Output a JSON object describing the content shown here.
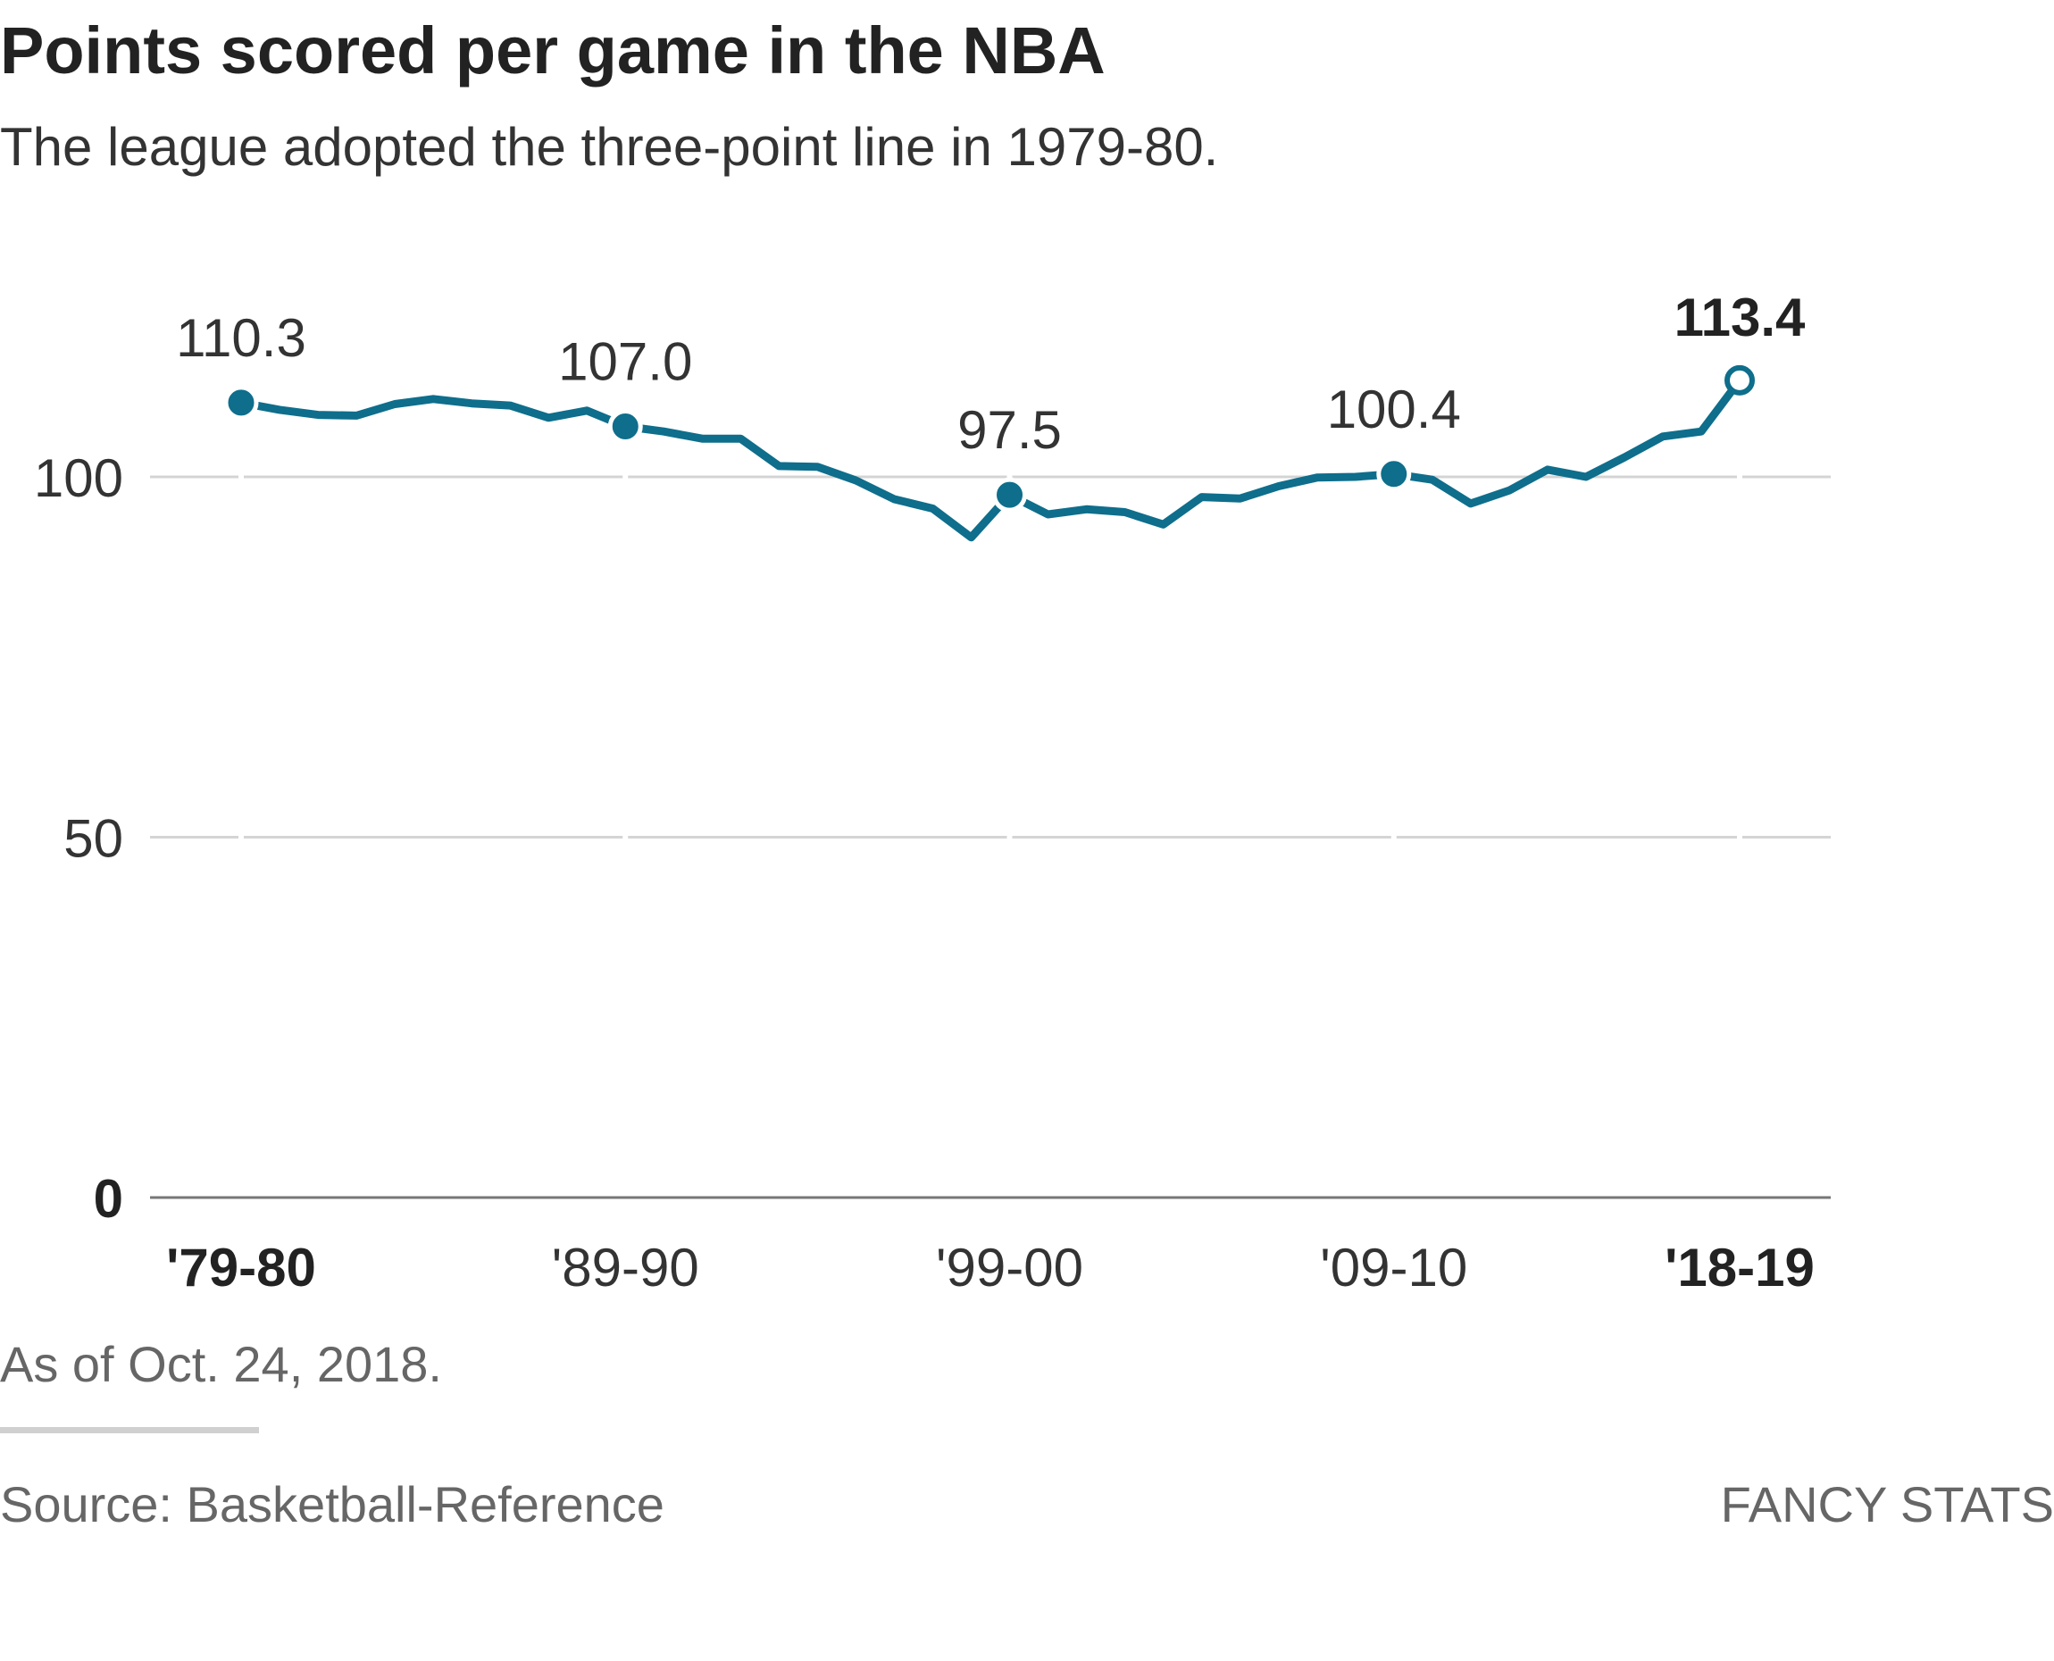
{
  "header": {
    "title": "Points scored per game in the NBA",
    "subtitle": "The league adopted the three-point line in 1979-80."
  },
  "footer": {
    "note": "As of Oct. 24, 2018.",
    "source": "Source: Basketball-Reference",
    "credit": "FANCY STATS"
  },
  "colors": {
    "line": "#0e6e8c",
    "grid": "#d4d4d4",
    "baseline": "#777777"
  },
  "chart_data": {
    "type": "line",
    "title": "Points scored per game in the NBA",
    "subtitle": "The league adopted the three-point line in 1979-80.",
    "xlabel": "",
    "ylabel": "",
    "ylim": [
      0,
      113.4
    ],
    "y_ticks": [
      0,
      50,
      100
    ],
    "grid": true,
    "legend": "none",
    "x": [
      "1979-80",
      "1980-81",
      "1981-82",
      "1982-83",
      "1983-84",
      "1984-85",
      "1985-86",
      "1986-87",
      "1987-88",
      "1988-89",
      "1989-90",
      "1990-91",
      "1991-92",
      "1992-93",
      "1993-94",
      "1994-95",
      "1995-96",
      "1996-97",
      "1997-98",
      "1998-99",
      "1999-00",
      "2000-01",
      "2001-02",
      "2002-03",
      "2003-04",
      "2004-05",
      "2005-06",
      "2006-07",
      "2007-08",
      "2008-09",
      "2009-10",
      "2010-11",
      "2011-12",
      "2012-13",
      "2013-14",
      "2014-15",
      "2015-16",
      "2016-17",
      "2017-18",
      "2018-19"
    ],
    "x_tick_labels": [
      {
        "index": 0,
        "label": "'79-80",
        "bold": true
      },
      {
        "index": 10,
        "label": "'89-90",
        "bold": false
      },
      {
        "index": 20,
        "label": "'99-00",
        "bold": false
      },
      {
        "index": 30,
        "label": "'09-10",
        "bold": false
      },
      {
        "index": 39,
        "label": "'18-19",
        "bold": true
      }
    ],
    "series": [
      {
        "values": [
          110.3,
          109.3,
          108.6,
          108.5,
          110.1,
          110.8,
          110.2,
          109.9,
          108.2,
          109.2,
          107.0,
          106.3,
          105.3,
          105.3,
          101.5,
          101.4,
          99.5,
          96.9,
          95.6,
          91.6,
          97.5,
          94.8,
          95.5,
          95.1,
          93.4,
          97.2,
          97.0,
          98.7,
          99.9,
          100.0,
          100.4,
          99.6,
          96.3,
          98.1,
          101.0,
          100.0,
          102.7,
          105.6,
          106.3,
          113.4
        ]
      }
    ],
    "annotations": [
      {
        "index": 0,
        "label": "110.3",
        "bold": false,
        "marker": "filled"
      },
      {
        "index": 10,
        "label": "107.0",
        "bold": false,
        "marker": "filled"
      },
      {
        "index": 20,
        "label": "97.5",
        "bold": false,
        "marker": "filled"
      },
      {
        "index": 30,
        "label": "100.4",
        "bold": false,
        "marker": "filled"
      },
      {
        "index": 39,
        "label": "113.4",
        "bold": true,
        "marker": "hollow"
      }
    ]
  }
}
